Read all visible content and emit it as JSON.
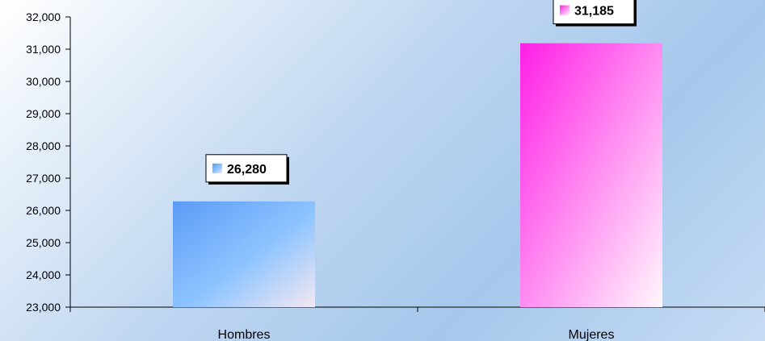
{
  "chart_data": {
    "type": "bar",
    "categories": [
      "Hombres",
      "Mujeres"
    ],
    "values": [
      26280,
      31185
    ],
    "data_labels": [
      "26,280",
      "31,185"
    ],
    "ylim": [
      23000,
      32000
    ],
    "yticks": [
      23000,
      24000,
      25000,
      26000,
      27000,
      28000,
      29000,
      30000,
      31000,
      32000
    ],
    "ytick_labels": [
      "23,000",
      "24,000",
      "25,000",
      "26,000",
      "27,000",
      "28,000",
      "29,000",
      "30,000",
      "31,000",
      "32,000"
    ],
    "grid": false,
    "legend": "none",
    "title": "",
    "xlabel": "",
    "ylabel": "",
    "colors": {
      "bar_1_start": "#5b9bf5",
      "bar_1_end": "#f4e8f1",
      "bar_2_start": "#ff1fe6",
      "bar_2_end": "#fff7fc",
      "axis": "#000000"
    }
  }
}
